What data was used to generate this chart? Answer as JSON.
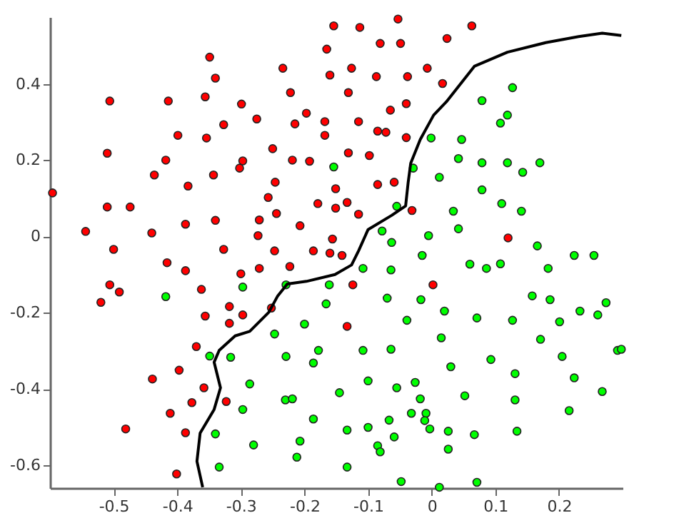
{
  "chart_data": {
    "type": "scatter",
    "xlim": [
      -0.6,
      0.3
    ],
    "ylim": [
      -0.66,
      0.575
    ],
    "xticks": [
      -0.5,
      -0.4,
      -0.3,
      -0.2,
      -0.1,
      0,
      0.1,
      0.2
    ],
    "yticks": [
      -0.6,
      -0.4,
      -0.2,
      0,
      0.2,
      0.4
    ],
    "grid": false,
    "series": [
      {
        "color": "#ff0000",
        "marker": "circle",
        "x": [
          -0.349,
          -0.34,
          -0.506,
          -0.414,
          -0.356,
          -0.299,
          -0.327,
          -0.399,
          -0.354,
          -0.51,
          -0.418,
          -0.297,
          -0.302,
          -0.436,
          -0.343,
          -0.383,
          -0.596,
          -0.51,
          -0.474,
          -0.34,
          -0.387,
          -0.544,
          -0.44,
          -0.5,
          -0.327,
          -0.416,
          -0.387,
          -0.3,
          -0.506,
          -0.491,
          -0.362,
          -0.52,
          -0.318,
          -0.356,
          -0.318,
          -0.297,
          -0.37,
          -0.397,
          -0.439,
          -0.358,
          -0.377,
          -0.323,
          -0.411,
          -0.481,
          -0.387,
          -0.401,
          -0.053,
          -0.154,
          -0.113,
          -0.081,
          -0.049,
          -0.165,
          -0.234,
          -0.16,
          -0.126,
          -0.087,
          -0.038,
          -0.007,
          -0.222,
          -0.131,
          -0.275,
          -0.215,
          -0.197,
          -0.168,
          -0.115,
          -0.065,
          -0.04,
          -0.168,
          -0.085,
          -0.072,
          -0.04,
          -0.25,
          -0.219,
          -0.192,
          -0.131,
          -0.098,
          -0.246,
          -0.151,
          -0.085,
          -0.059,
          -0.257,
          -0.179,
          -0.151,
          -0.133,
          -0.115,
          -0.031,
          -0.244,
          -0.271,
          -0.207,
          -0.273,
          -0.156,
          -0.247,
          -0.186,
          -0.16,
          -0.141,
          -0.271,
          -0.223,
          -0.124,
          0.002,
          -0.252,
          -0.133,
          0.063,
          0.024,
          0.017,
          0.12
        ],
        "values": [
          0.47,
          0.415,
          0.355,
          0.355,
          0.366,
          0.347,
          0.293,
          0.265,
          0.258,
          0.218,
          0.2,
          0.198,
          0.179,
          0.161,
          0.161,
          0.132,
          0.114,
          0.077,
          0.077,
          0.042,
          0.032,
          0.013,
          0.009,
          -0.034,
          -0.034,
          -0.069,
          -0.09,
          -0.098,
          -0.127,
          -0.146,
          -0.139,
          -0.173,
          -0.184,
          -0.209,
          -0.228,
          -0.206,
          -0.289,
          -0.351,
          -0.374,
          -0.397,
          -0.436,
          -0.433,
          -0.464,
          -0.505,
          -0.515,
          -0.623,
          0.57,
          0.552,
          0.548,
          0.506,
          0.506,
          0.491,
          0.441,
          0.423,
          0.441,
          0.419,
          0.419,
          0.441,
          0.377,
          0.377,
          0.308,
          0.295,
          0.323,
          0.301,
          0.301,
          0.331,
          0.348,
          0.265,
          0.276,
          0.273,
          0.259,
          0.23,
          0.2,
          0.197,
          0.219,
          0.212,
          0.142,
          0.125,
          0.136,
          0.142,
          0.102,
          0.086,
          0.074,
          0.089,
          0.058,
          0.068,
          0.06,
          0.043,
          0.028,
          0.002,
          -0.007,
          -0.038,
          -0.038,
          -0.044,
          -0.05,
          -0.084,
          -0.079,
          -0.127,
          -0.127,
          -0.188,
          -0.236,
          0.552,
          0.519,
          0.401,
          -0.004
        ]
      },
      {
        "color": "#00ff00",
        "marker": "circle",
        "x": [
          -0.154,
          -0.001,
          -0.029,
          0.012,
          -0.055,
          -0.078,
          -0.063,
          -0.005,
          -0.015,
          -0.297,
          -0.418,
          -0.349,
          -0.316,
          -0.297,
          -0.34,
          -0.334,
          -0.229,
          -0.161,
          -0.108,
          -0.064,
          -0.07,
          -0.166,
          -0.017,
          -0.039,
          -0.2,
          -0.247,
          -0.229,
          -0.178,
          -0.186,
          -0.108,
          -0.064,
          -0.286,
          -0.23,
          -0.219,
          -0.145,
          -0.1,
          -0.055,
          -0.026,
          -0.018,
          -0.186,
          -0.133,
          -0.1,
          -0.067,
          -0.032,
          -0.009,
          -0.011,
          -0.003,
          -0.059,
          -0.28,
          -0.207,
          -0.212,
          -0.085,
          -0.081,
          -0.133,
          -0.048,
          0.127,
          0.079,
          0.119,
          0.108,
          0.047,
          0.042,
          0.079,
          0.119,
          0.143,
          0.17,
          0.079,
          0.11,
          0.141,
          0.034,
          0.042,
          0.166,
          0.224,
          0.255,
          0.06,
          0.086,
          0.108,
          0.183,
          0.158,
          0.186,
          0.02,
          0.071,
          0.127,
          0.201,
          0.233,
          0.261,
          0.274,
          0.015,
          0.171,
          0.292,
          0.298,
          0.205,
          0.093,
          0.03,
          0.131,
          0.224,
          0.268,
          0.052,
          0.131,
          0.216,
          0.026,
          0.067,
          0.134,
          0.026,
          0.071,
          0.012
        ],
        "values": [
          0.182,
          0.258,
          0.179,
          0.155,
          0.079,
          0.014,
          -0.016,
          0.002,
          -0.05,
          -0.133,
          -0.158,
          -0.314,
          -0.317,
          -0.454,
          -0.518,
          -0.605,
          -0.127,
          -0.127,
          -0.084,
          -0.088,
          -0.162,
          -0.177,
          -0.166,
          -0.22,
          -0.23,
          -0.256,
          -0.315,
          -0.299,
          -0.332,
          -0.299,
          -0.296,
          -0.387,
          -0.429,
          -0.426,
          -0.41,
          -0.379,
          -0.397,
          -0.383,
          -0.426,
          -0.479,
          -0.508,
          -0.501,
          -0.482,
          -0.464,
          -0.464,
          -0.483,
          -0.505,
          -0.526,
          -0.547,
          -0.537,
          -0.579,
          -0.549,
          -0.565,
          -0.605,
          -0.643,
          0.39,
          0.356,
          0.318,
          0.297,
          0.254,
          0.204,
          0.193,
          0.193,
          0.168,
          0.193,
          0.122,
          0.086,
          0.066,
          0.066,
          0.02,
          -0.025,
          -0.05,
          -0.05,
          -0.073,
          -0.084,
          -0.072,
          -0.084,
          -0.156,
          -0.166,
          -0.196,
          -0.214,
          -0.22,
          -0.224,
          -0.196,
          -0.206,
          -0.174,
          -0.266,
          -0.27,
          -0.299,
          -0.296,
          -0.315,
          -0.323,
          -0.342,
          -0.36,
          -0.371,
          -0.407,
          -0.418,
          -0.429,
          -0.457,
          -0.511,
          -0.52,
          -0.511,
          -0.558,
          -0.645,
          -0.658
        ]
      },
      {
        "type": "line",
        "color": "#000000",
        "line_style": "solid",
        "marker": "none",
        "x": [
          -0.36,
          -0.369,
          -0.364,
          -0.342,
          -0.332,
          -0.342,
          -0.334,
          -0.309,
          -0.286,
          -0.256,
          -0.242,
          -0.227,
          -0.197,
          -0.152,
          -0.126,
          -0.115,
          -0.1,
          -0.063,
          -0.041,
          -0.037,
          -0.033,
          -0.018,
          0.003,
          0.023,
          0.067,
          0.119,
          0.179,
          0.231,
          0.268,
          0.298
        ],
        "values": [
          -0.658,
          -0.59,
          -0.516,
          -0.454,
          -0.397,
          -0.33,
          -0.299,
          -0.261,
          -0.249,
          -0.199,
          -0.156,
          -0.125,
          -0.118,
          -0.1,
          -0.075,
          -0.038,
          0.018,
          0.055,
          0.08,
          0.142,
          0.192,
          0.254,
          0.318,
          0.353,
          0.446,
          0.483,
          0.508,
          0.524,
          0.533,
          0.527
        ]
      }
    ]
  }
}
